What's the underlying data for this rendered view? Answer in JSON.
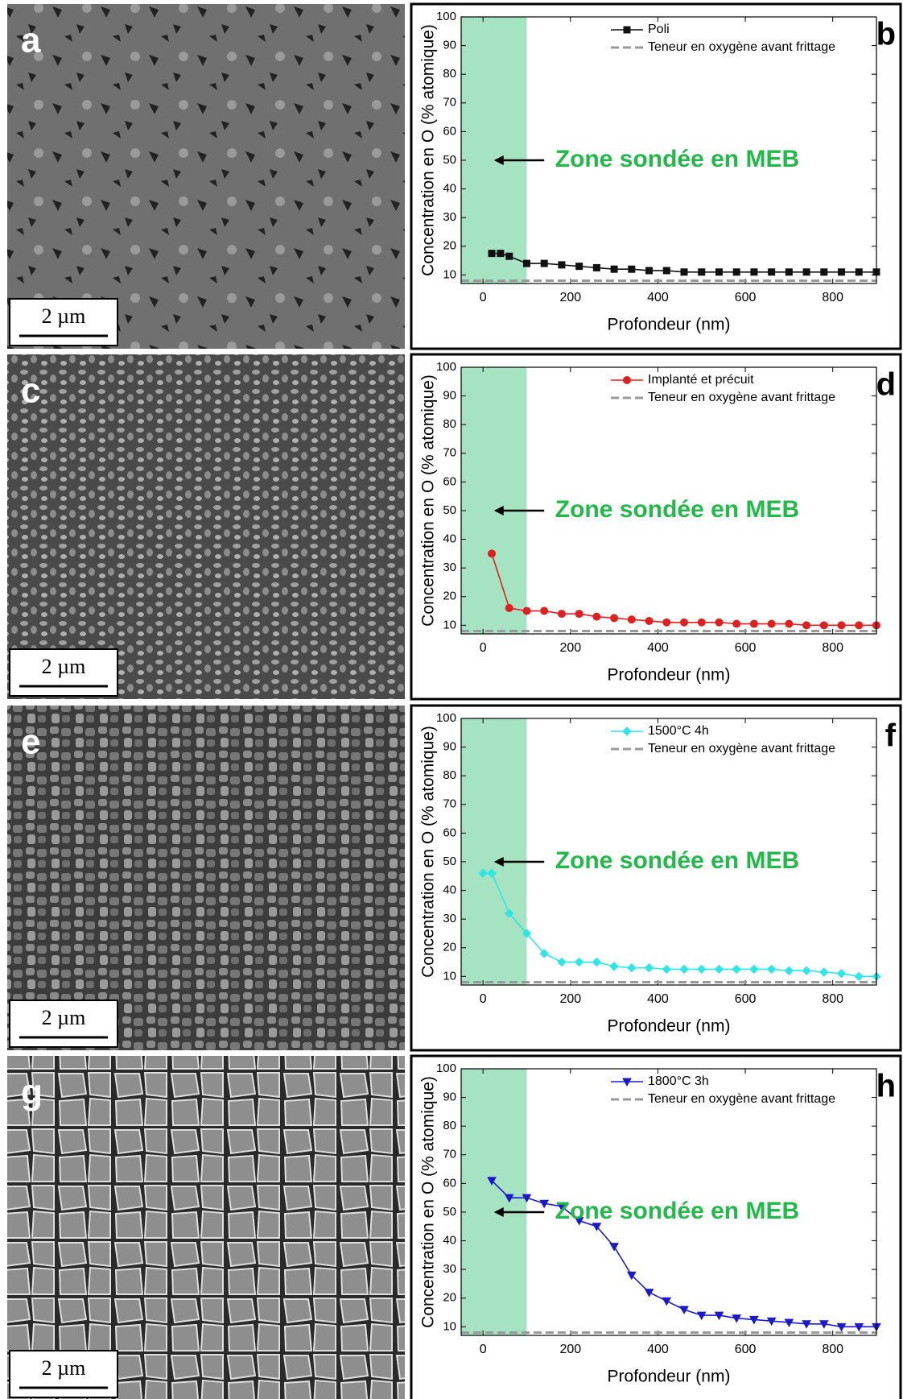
{
  "chart_data": [
    {
      "type": "line",
      "panel": "b",
      "xlabel": "Profondeur (nm)",
      "ylabel": "Concentration en O (% atomique)",
      "annotation": "Zone sondée en MEB",
      "xlim": [
        -50,
        900
      ],
      "xticks": [
        0,
        200,
        400,
        600,
        800
      ],
      "ylim": [
        7,
        100
      ],
      "yticks": [
        10,
        20,
        30,
        40,
        50,
        60,
        70,
        80,
        90,
        100
      ],
      "shaded_region": {
        "x": [
          -50,
          100
        ],
        "color": "#a6e3c2"
      },
      "x": [
        20,
        40,
        60,
        100,
        140,
        180,
        220,
        260,
        300,
        340,
        380,
        420,
        460,
        500,
        540,
        580,
        620,
        660,
        700,
        740,
        780,
        820,
        860,
        900
      ],
      "series": [
        {
          "name": "Poli",
          "color": "#111111",
          "marker": "square",
          "values": [
            17.5,
            17.5,
            16.5,
            14,
            14,
            13.5,
            13,
            12.5,
            12,
            12,
            11.5,
            11.5,
            11,
            11,
            11,
            11,
            11,
            11,
            11,
            11,
            11,
            11,
            11,
            11
          ]
        }
      ],
      "reference_lines": [
        {
          "name": "Teneur en oxygène avant frittage",
          "value": 8,
          "color": "#999999"
        }
      ],
      "legend": "upper right"
    },
    {
      "type": "line",
      "panel": "d",
      "xlabel": "Profondeur (nm)",
      "ylabel": "Concentration en O (% atomique)",
      "annotation": "Zone sondée en MEB",
      "xlim": [
        -50,
        900
      ],
      "xticks": [
        0,
        200,
        400,
        600,
        800
      ],
      "ylim": [
        7,
        100
      ],
      "yticks": [
        10,
        20,
        30,
        40,
        50,
        60,
        70,
        80,
        90,
        100
      ],
      "shaded_region": {
        "x": [
          -50,
          100
        ],
        "color": "#a6e3c2"
      },
      "x": [
        20,
        60,
        100,
        140,
        180,
        220,
        260,
        300,
        340,
        380,
        420,
        460,
        500,
        540,
        580,
        620,
        660,
        700,
        740,
        780,
        820,
        860,
        900
      ],
      "series": [
        {
          "name": "Implanté et précuit",
          "color": "#e02020",
          "marker": "circle",
          "values": [
            35,
            16,
            15,
            15,
            14,
            14,
            13,
            12.5,
            12,
            11.5,
            11,
            11,
            11,
            11,
            10.5,
            10.5,
            10.5,
            10.5,
            10,
            10,
            10,
            10,
            10
          ]
        }
      ],
      "reference_lines": [
        {
          "name": "Teneur en oxygène avant frittage",
          "value": 8,
          "color": "#999999"
        }
      ],
      "legend": "upper right"
    },
    {
      "type": "line",
      "panel": "f",
      "xlabel": "Profondeur (nm)",
      "ylabel": "Concentration en O (% atomique)",
      "annotation": "Zone sondée en MEB",
      "xlim": [
        -50,
        900
      ],
      "xticks": [
        0,
        200,
        400,
        600,
        800
      ],
      "ylim": [
        7,
        100
      ],
      "yticks": [
        10,
        20,
        30,
        40,
        50,
        60,
        70,
        80,
        90,
        100
      ],
      "shaded_region": {
        "x": [
          -50,
          100
        ],
        "color": "#a6e3c2"
      },
      "x": [
        0,
        20,
        60,
        100,
        140,
        180,
        220,
        260,
        300,
        340,
        380,
        420,
        460,
        500,
        540,
        580,
        620,
        660,
        700,
        740,
        780,
        820,
        860,
        900
      ],
      "series": [
        {
          "name": "1500°C 4h",
          "color": "#2ee6e6",
          "marker": "diamond",
          "values": [
            46,
            46,
            32,
            25,
            18,
            15,
            15,
            15,
            13.5,
            13,
            13,
            12.5,
            12.5,
            12.5,
            12.5,
            12.5,
            12.5,
            12.5,
            12,
            12,
            11.5,
            11,
            10,
            10
          ]
        }
      ],
      "reference_lines": [
        {
          "name": "Teneur en oxygène avant frittage",
          "value": 8,
          "color": "#999999"
        }
      ],
      "legend": "upper right"
    },
    {
      "type": "line",
      "panel": "h",
      "xlabel": "Profondeur (nm)",
      "ylabel": "Concentration en O (% atomique)",
      "annotation": "Zone sondée en MEB",
      "xlim": [
        -50,
        900
      ],
      "xticks": [
        0,
        200,
        400,
        600,
        800
      ],
      "ylim": [
        7,
        100
      ],
      "yticks": [
        10,
        20,
        30,
        40,
        50,
        60,
        70,
        80,
        90,
        100
      ],
      "shaded_region": {
        "x": [
          -50,
          100
        ],
        "color": "#a6e3c2"
      },
      "x": [
        20,
        60,
        100,
        140,
        180,
        220,
        260,
        300,
        340,
        380,
        420,
        460,
        500,
        540,
        580,
        620,
        660,
        700,
        740,
        780,
        820,
        860,
        900
      ],
      "series": [
        {
          "name": "1800°C 3h",
          "color": "#1a1acc",
          "marker": "triangle",
          "values": [
            61,
            55,
            55,
            53,
            52,
            47,
            45,
            38,
            28,
            22,
            19,
            16,
            14,
            14,
            13,
            12.5,
            12,
            11.5,
            11,
            11,
            10,
            10,
            10
          ]
        }
      ],
      "reference_lines": [
        {
          "name": "Teneur en oxygène avant frittage",
          "value": 8,
          "color": "#999999"
        }
      ],
      "legend": "upper right"
    }
  ],
  "images": [
    {
      "label": "a",
      "scale_bar": "2 µm"
    },
    {
      "label": "c",
      "scale_bar": "2 µm"
    },
    {
      "label": "e",
      "scale_bar": "2 µm"
    },
    {
      "label": "g",
      "scale_bar": "2 µm"
    }
  ]
}
